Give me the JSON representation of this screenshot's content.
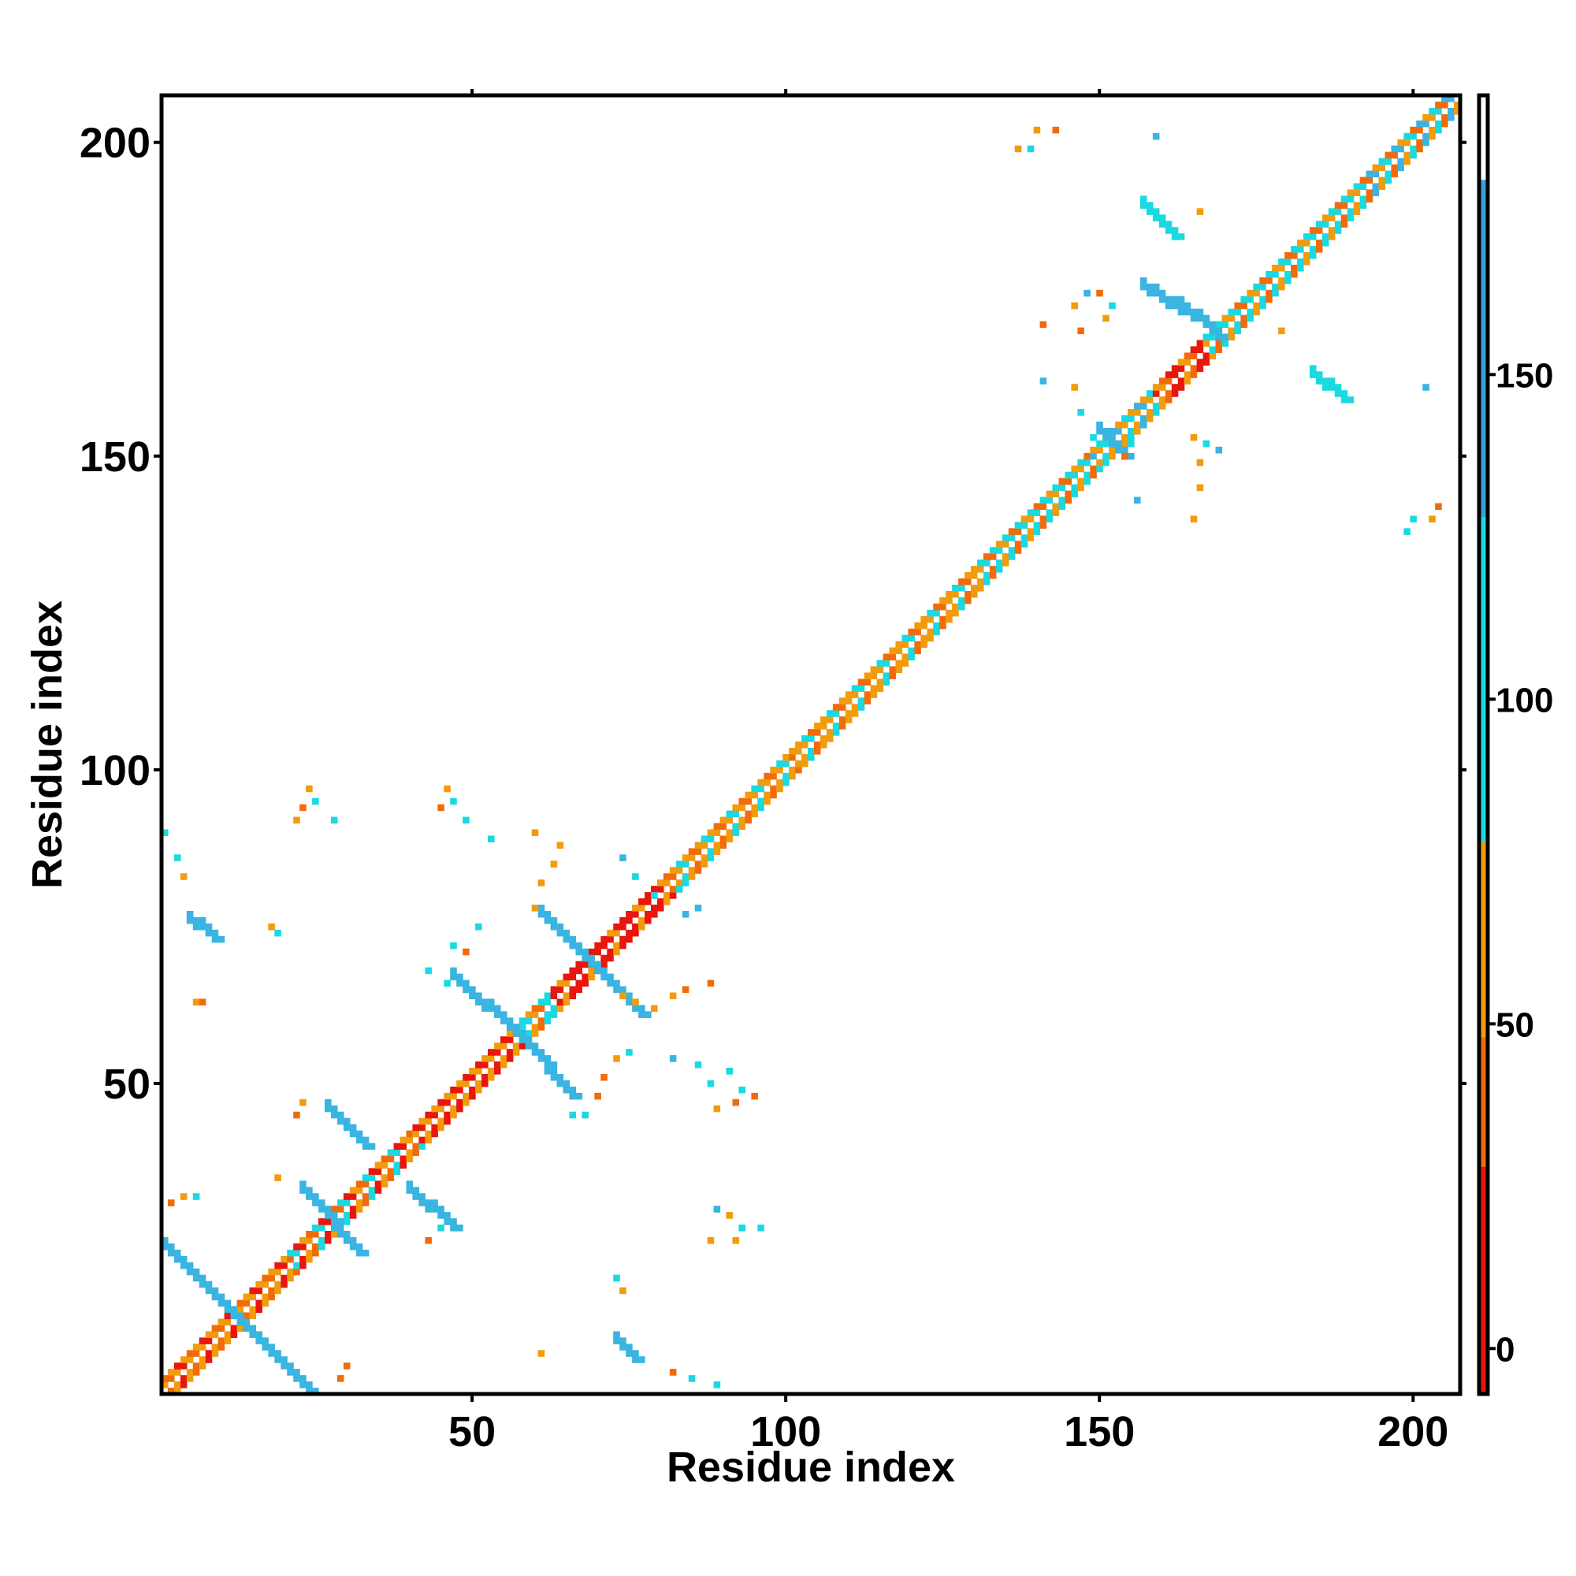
{
  "chart_data": {
    "type": "heatmap",
    "title": "",
    "xlabel": "Residue index",
    "ylabel": "Residue index",
    "xlim": [
      1,
      207
    ],
    "ylim": [
      1,
      207
    ],
    "x_ticks": [
      50,
      100,
      150,
      200
    ],
    "y_ticks": [
      50,
      100,
      150,
      200
    ],
    "grid": false,
    "colorbar": {
      "ticks": [
        0,
        50,
        100,
        150
      ],
      "range": [
        -7,
        193
      ],
      "bands": [
        {
          "from": -7,
          "to": 28,
          "color": "#e8160c"
        },
        {
          "from": 28,
          "to": 48,
          "color": "#f26b0a"
        },
        {
          "from": 48,
          "to": 78,
          "color": "#f29b0c"
        },
        {
          "from": 78,
          "to": 128,
          "color": "#1ad9e0"
        },
        {
          "from": 128,
          "to": 180,
          "color": "#3aa0d8"
        },
        {
          "from": 180,
          "to": 193,
          "color": "#ffffff"
        }
      ]
    },
    "colors": {
      "red": "#e8160c",
      "red_orange": "#f26b0a",
      "orange": "#f29b0c",
      "cyan": "#1ad9e0",
      "light_blue": "#3ab4e0",
      "steel_blue": "#4f88c8"
    },
    "diagonal": {
      "band_halfwidth": 2,
      "segments": [
        {
          "from": 1,
          "to": 20,
          "palette": [
            "orange",
            "red",
            "orange",
            "red_orange"
          ]
        },
        {
          "from": 20,
          "to": 40,
          "palette": [
            "red",
            "orange",
            "red_orange",
            "cyan"
          ]
        },
        {
          "from": 40,
          "to": 56,
          "palette": [
            "orange",
            "red",
            "orange",
            "red"
          ]
        },
        {
          "from": 56,
          "to": 62,
          "palette": [
            "cyan",
            "orange",
            "red_orange",
            "cyan"
          ]
        },
        {
          "from": 62,
          "to": 80,
          "palette": [
            "red",
            "red",
            "orange",
            "red"
          ]
        },
        {
          "from": 80,
          "to": 100,
          "palette": [
            "orange",
            "cyan",
            "orange",
            "red_orange"
          ]
        },
        {
          "from": 100,
          "to": 130,
          "palette": [
            "orange",
            "cyan",
            "red_orange",
            "orange"
          ]
        },
        {
          "from": 130,
          "to": 148,
          "palette": [
            "orange",
            "cyan",
            "red_orange",
            "cyan"
          ]
        },
        {
          "from": 148,
          "to": 158,
          "palette": [
            "cyan",
            "orange",
            "light_blue",
            "orange"
          ]
        },
        {
          "from": 158,
          "to": 166,
          "palette": [
            "red",
            "orange",
            "red_orange",
            "red"
          ]
        },
        {
          "from": 166,
          "to": 190,
          "palette": [
            "orange",
            "cyan",
            "red_orange",
            "cyan"
          ]
        },
        {
          "from": 190,
          "to": 207,
          "palette": [
            "orange",
            "cyan",
            "red_orange",
            "light_blue"
          ]
        }
      ]
    },
    "contact_strands": [
      {
        "x": [
          1,
          24
        ],
        "y": [
          24,
          1
        ],
        "color": "light_blue"
      },
      {
        "x": [
          23,
          32
        ],
        "y": [
          33,
          23
        ],
        "color": "light_blue"
      },
      {
        "x": [
          27,
          33
        ],
        "y": [
          46,
          40
        ],
        "color": "light_blue"
      },
      {
        "x": [
          40,
          47
        ],
        "y": [
          33,
          27
        ],
        "color": "light_blue"
      },
      {
        "x": [
          47,
          58
        ],
        "y": [
          67,
          57
        ],
        "color": "light_blue"
      },
      {
        "x": [
          58,
          66
        ],
        "y": [
          57,
          48
        ],
        "color": "light_blue"
      },
      {
        "x": [
          61,
          69
        ],
        "y": [
          77,
          69
        ],
        "color": "light_blue"
      },
      {
        "x": [
          69,
          77
        ],
        "y": [
          69,
          61
        ],
        "color": "light_blue"
      },
      {
        "x": [
          73,
          76
        ],
        "y": [
          9,
          6
        ],
        "color": "light_blue"
      },
      {
        "x": [
          5,
          9
        ],
        "y": [
          76,
          73
        ],
        "color": "light_blue"
      },
      {
        "x": [
          157,
          163
        ],
        "y": [
          177,
          173
        ],
        "color": "light_blue"
      },
      {
        "x": [
          163,
          169
        ],
        "y": [
          174,
          169
        ],
        "color": "light_blue"
      },
      {
        "x": [
          157,
          162
        ],
        "y": [
          190,
          185
        ],
        "color": "cyan"
      },
      {
        "x": [
          184,
          189
        ],
        "y": [
          163,
          159
        ],
        "color": "cyan"
      },
      {
        "x": [
          150,
          154
        ],
        "y": [
          154,
          150
        ],
        "color": "light_blue"
      }
    ],
    "contact_points": [
      [
        24,
        97,
        "orange"
      ],
      [
        25,
        95,
        "cyan"
      ],
      [
        23,
        94,
        "red_orange"
      ],
      [
        22,
        92,
        "orange"
      ],
      [
        28,
        92,
        "cyan"
      ],
      [
        46,
        97,
        "orange"
      ],
      [
        47,
        95,
        "cyan"
      ],
      [
        45,
        94,
        "red_orange"
      ],
      [
        49,
        92,
        "cyan"
      ],
      [
        53,
        89,
        "cyan"
      ],
      [
        1,
        90,
        "cyan"
      ],
      [
        3,
        86,
        "cyan"
      ],
      [
        4,
        83,
        "orange"
      ],
      [
        18,
        75,
        "orange"
      ],
      [
        19,
        74,
        "cyan"
      ],
      [
        6,
        63,
        "orange"
      ],
      [
        7,
        63,
        "red_orange"
      ],
      [
        47,
        72,
        "cyan"
      ],
      [
        49,
        71,
        "red_orange"
      ],
      [
        51,
        75,
        "cyan"
      ],
      [
        43,
        68,
        "cyan"
      ],
      [
        46,
        66,
        "cyan"
      ],
      [
        60,
        90,
        "orange"
      ],
      [
        64,
        88,
        "orange"
      ],
      [
        63,
        85,
        "orange"
      ],
      [
        61,
        82,
        "orange"
      ],
      [
        60,
        78,
        "orange"
      ],
      [
        74,
        86,
        "light_blue"
      ],
      [
        76,
        83,
        "cyan"
      ],
      [
        79,
        80,
        "cyan"
      ],
      [
        83,
        81,
        "cyan"
      ],
      [
        84,
        77,
        "light_blue"
      ],
      [
        86,
        78,
        "light_blue"
      ],
      [
        74,
        64,
        "orange"
      ],
      [
        76,
        63,
        "orange"
      ],
      [
        79,
        62,
        "orange"
      ],
      [
        82,
        64,
        "orange"
      ],
      [
        84,
        65,
        "red_orange"
      ],
      [
        88,
        66,
        "red_orange"
      ],
      [
        75,
        55,
        "cyan"
      ],
      [
        73,
        54,
        "orange"
      ],
      [
        71,
        51,
        "red_orange"
      ],
      [
        70,
        48,
        "red_orange"
      ],
      [
        82,
        54,
        "light_blue"
      ],
      [
        86,
        53,
        "cyan"
      ],
      [
        88,
        50,
        "cyan"
      ],
      [
        91,
        52,
        "cyan"
      ],
      [
        93,
        49,
        "cyan"
      ],
      [
        92,
        47,
        "red_orange"
      ],
      [
        95,
        48,
        "red_orange"
      ],
      [
        89,
        46,
        "orange"
      ],
      [
        66,
        45,
        "cyan"
      ],
      [
        68,
        45,
        "cyan"
      ],
      [
        89,
        30,
        "light_blue"
      ],
      [
        91,
        29,
        "orange"
      ],
      [
        93,
        27,
        "cyan"
      ],
      [
        96,
        27,
        "cyan"
      ],
      [
        88,
        25,
        "orange"
      ],
      [
        92,
        25,
        "orange"
      ],
      [
        73,
        19,
        "cyan"
      ],
      [
        74,
        17,
        "orange"
      ],
      [
        61,
        7,
        "orange"
      ],
      [
        82,
        4,
        "red_orange"
      ],
      [
        85,
        3,
        "cyan"
      ],
      [
        89,
        2,
        "cyan"
      ],
      [
        30,
        5,
        "red_orange"
      ],
      [
        29,
        3,
        "red_orange"
      ],
      [
        2,
        31,
        "red_orange"
      ],
      [
        4,
        32,
        "orange"
      ],
      [
        6,
        32,
        "cyan"
      ],
      [
        23,
        47,
        "orange"
      ],
      [
        22,
        45,
        "red_orange"
      ],
      [
        43,
        25,
        "red_orange"
      ],
      [
        45,
        27,
        "cyan"
      ],
      [
        19,
        35,
        "orange"
      ],
      [
        140,
        202,
        "orange"
      ],
      [
        139,
        199,
        "cyan"
      ],
      [
        137,
        199,
        "orange"
      ],
      [
        143,
        202,
        "red_orange"
      ],
      [
        159,
        201,
        "light_blue"
      ],
      [
        166,
        189,
        "orange"
      ],
      [
        148,
        176,
        "light_blue"
      ],
      [
        150,
        176,
        "red_orange"
      ],
      [
        146,
        174,
        "orange"
      ],
      [
        151,
        172,
        "orange"
      ],
      [
        141,
        171,
        "red_orange"
      ],
      [
        147,
        170,
        "red_orange"
      ],
      [
        152,
        174,
        "cyan"
      ],
      [
        141,
        162,
        "light_blue"
      ],
      [
        146,
        161,
        "orange"
      ],
      [
        147,
        157,
        "cyan"
      ],
      [
        149,
        153,
        "cyan"
      ],
      [
        154,
        150,
        "red_orange"
      ],
      [
        155,
        152,
        "cyan"
      ],
      [
        156,
        143,
        "light_blue"
      ],
      [
        165,
        153,
        "orange"
      ],
      [
        166,
        149,
        "orange"
      ],
      [
        167,
        152,
        "cyan"
      ],
      [
        169,
        151,
        "light_blue"
      ],
      [
        165,
        140,
        "orange"
      ],
      [
        166,
        145,
        "orange"
      ],
      [
        179,
        170,
        "orange"
      ],
      [
        202,
        161,
        "light_blue"
      ],
      [
        200,
        140,
        "cyan"
      ],
      [
        199,
        138,
        "cyan"
      ],
      [
        203,
        140,
        "orange"
      ],
      [
        204,
        142,
        "red_orange"
      ]
    ]
  }
}
